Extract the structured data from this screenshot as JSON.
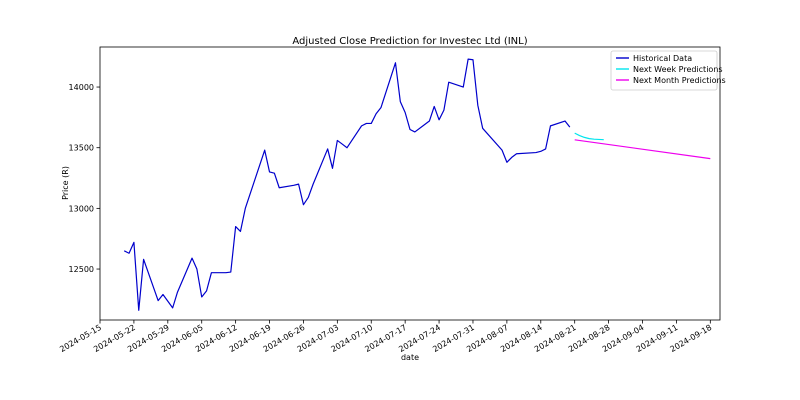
{
  "chart_data": {
    "type": "line",
    "title": "Adjusted Close Prediction for Investec Ltd (INL)",
    "xlabel": "date",
    "ylabel": "Price (R)",
    "xlim": [
      "2024-05-15",
      "2024-09-20"
    ],
    "ylim": [
      12080,
      14330
    ],
    "x_ticks": [
      "2024-05-15",
      "2024-05-22",
      "2024-05-29",
      "2024-06-05",
      "2024-06-12",
      "2024-06-19",
      "2024-06-26",
      "2024-07-03",
      "2024-07-10",
      "2024-07-17",
      "2024-07-24",
      "2024-07-31",
      "2024-08-07",
      "2024-08-14",
      "2024-08-21",
      "2024-08-28",
      "2024-09-04",
      "2024-09-11",
      "2024-09-18"
    ],
    "y_ticks": [
      12500,
      13000,
      13500,
      14000
    ],
    "grid": false,
    "legend": "top-right",
    "series": [
      {
        "name": "Historical Data",
        "color": "#0000cc",
        "points": [
          [
            "2024-05-20",
            12650
          ],
          [
            "2024-05-21",
            12630
          ],
          [
            "2024-05-22",
            12720
          ],
          [
            "2024-05-23",
            12160
          ],
          [
            "2024-05-24",
            12580
          ],
          [
            "2024-05-27",
            12240
          ],
          [
            "2024-05-28",
            12290
          ],
          [
            "2024-05-30",
            12180
          ],
          [
            "2024-05-31",
            12310
          ],
          [
            "2024-06-03",
            12590
          ],
          [
            "2024-06-04",
            12500
          ],
          [
            "2024-06-05",
            12270
          ],
          [
            "2024-06-06",
            12320
          ],
          [
            "2024-06-07",
            12470
          ],
          [
            "2024-06-10",
            12470
          ],
          [
            "2024-06-11",
            12475
          ],
          [
            "2024-06-12",
            12850
          ],
          [
            "2024-06-13",
            12810
          ],
          [
            "2024-06-14",
            13000
          ],
          [
            "2024-06-18",
            13480
          ],
          [
            "2024-06-19",
            13300
          ],
          [
            "2024-06-20",
            13290
          ],
          [
            "2024-06-21",
            13170
          ],
          [
            "2024-06-24",
            13190
          ],
          [
            "2024-06-25",
            13200
          ],
          [
            "2024-06-26",
            13030
          ],
          [
            "2024-06-27",
            13090
          ],
          [
            "2024-06-28",
            13200
          ],
          [
            "2024-07-01",
            13490
          ],
          [
            "2024-07-02",
            13330
          ],
          [
            "2024-07-03",
            13560
          ],
          [
            "2024-07-04",
            13530
          ],
          [
            "2024-07-05",
            13500
          ],
          [
            "2024-07-08",
            13680
          ],
          [
            "2024-07-09",
            13700
          ],
          [
            "2024-07-10",
            13700
          ],
          [
            "2024-07-11",
            13780
          ],
          [
            "2024-07-12",
            13830
          ],
          [
            "2024-07-15",
            14200
          ],
          [
            "2024-07-16",
            13880
          ],
          [
            "2024-07-17",
            13790
          ],
          [
            "2024-07-18",
            13650
          ],
          [
            "2024-07-19",
            13630
          ],
          [
            "2024-07-22",
            13720
          ],
          [
            "2024-07-23",
            13840
          ],
          [
            "2024-07-24",
            13730
          ],
          [
            "2024-07-25",
            13810
          ],
          [
            "2024-07-26",
            14040
          ],
          [
            "2024-07-29",
            14000
          ],
          [
            "2024-07-30",
            14230
          ],
          [
            "2024-07-31",
            14225
          ],
          [
            "2024-08-01",
            13850
          ],
          [
            "2024-08-02",
            13660
          ],
          [
            "2024-08-06",
            13480
          ],
          [
            "2024-08-07",
            13380
          ],
          [
            "2024-08-08",
            13420
          ],
          [
            "2024-08-09",
            13450
          ],
          [
            "2024-08-13",
            13460
          ],
          [
            "2024-08-14",
            13470
          ],
          [
            "2024-08-15",
            13490
          ],
          [
            "2024-08-16",
            13680
          ],
          [
            "2024-08-19",
            13720
          ],
          [
            "2024-08-20",
            13670
          ]
        ]
      },
      {
        "name": "Next Week Predictions",
        "color": "#00e5ee",
        "points": [
          [
            "2024-08-21",
            13620
          ],
          [
            "2024-08-22",
            13600
          ],
          [
            "2024-08-23",
            13585
          ],
          [
            "2024-08-24",
            13575
          ],
          [
            "2024-08-25",
            13570
          ],
          [
            "2024-08-26",
            13568
          ],
          [
            "2024-08-27",
            13566
          ]
        ]
      },
      {
        "name": "Next Month Predictions",
        "color": "#ee00ee",
        "points": [
          [
            "2024-08-21",
            13565
          ],
          [
            "2024-09-18",
            13410
          ]
        ]
      }
    ]
  }
}
